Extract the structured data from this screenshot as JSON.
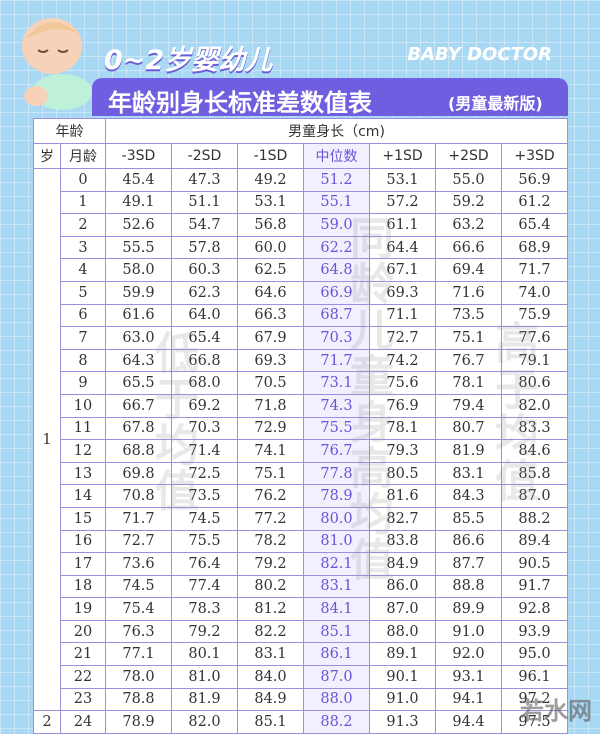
{
  "header": {
    "title_line1": "0~2岁婴幼儿",
    "brand": "BABY DOCTOR",
    "title_line2": "年龄别身长标准差数值表",
    "edition": "(男童最新版)"
  },
  "table": {
    "age_heading": "年龄",
    "span_heading": "男童身长（cm)",
    "columns": [
      "岁",
      "月龄",
      "-3SD",
      "-2SD",
      "-1SD",
      "中位数",
      "+1SD",
      "+2SD",
      "+3SD"
    ],
    "groups": [
      {
        "label": "1",
        "rows": [
          {
            "month": "0",
            "values": [
              "45.4",
              "47.3",
              "49.2",
              "51.2",
              "53.1",
              "55.0",
              "56.9"
            ]
          },
          {
            "month": "1",
            "values": [
              "49.1",
              "51.1",
              "53.1",
              "55.1",
              "57.2",
              "59.2",
              "61.2"
            ]
          },
          {
            "month": "2",
            "values": [
              "52.6",
              "54.7",
              "56.8",
              "59.0",
              "61.1",
              "63.2",
              "65.4"
            ]
          },
          {
            "month": "3",
            "values": [
              "55.5",
              "57.8",
              "60.0",
              "62.2",
              "64.4",
              "66.6",
              "68.9"
            ]
          },
          {
            "month": "4",
            "values": [
              "58.0",
              "60.3",
              "62.5",
              "64.8",
              "67.1",
              "69.4",
              "71.7"
            ]
          },
          {
            "month": "5",
            "values": [
              "59.9",
              "62.3",
              "64.6",
              "66.9",
              "69.3",
              "71.6",
              "74.0"
            ]
          },
          {
            "month": "6",
            "values": [
              "61.6",
              "64.0",
              "66.3",
              "68.7",
              "71.1",
              "73.5",
              "75.9"
            ]
          },
          {
            "month": "7",
            "values": [
              "63.0",
              "65.4",
              "67.9",
              "70.3",
              "72.7",
              "75.1",
              "77.6"
            ]
          },
          {
            "month": "8",
            "values": [
              "64.3",
              "66.8",
              "69.3",
              "71.7",
              "74.2",
              "76.7",
              "79.1"
            ]
          },
          {
            "month": "9",
            "values": [
              "65.5",
              "68.0",
              "70.5",
              "73.1",
              "75.6",
              "78.1",
              "80.6"
            ]
          },
          {
            "month": "10",
            "values": [
              "66.7",
              "69.2",
              "71.8",
              "74.3",
              "76.9",
              "79.4",
              "82.0"
            ]
          },
          {
            "month": "11",
            "values": [
              "67.8",
              "70.3",
              "72.9",
              "75.5",
              "78.1",
              "80.7",
              "83.3"
            ]
          },
          {
            "month": "12",
            "values": [
              "68.8",
              "71.4",
              "74.1",
              "76.7",
              "79.3",
              "81.9",
              "84.6"
            ]
          },
          {
            "month": "13",
            "values": [
              "69.8",
              "72.5",
              "75.1",
              "77.8",
              "80.5",
              "83.1",
              "85.8"
            ]
          },
          {
            "month": "14",
            "values": [
              "70.8",
              "73.5",
              "76.2",
              "78.9",
              "81.6",
              "84.3",
              "87.0"
            ]
          },
          {
            "month": "15",
            "values": [
              "71.7",
              "74.5",
              "77.2",
              "80.0",
              "82.7",
              "85.5",
              "88.2"
            ]
          },
          {
            "month": "16",
            "values": [
              "72.7",
              "75.5",
              "78.2",
              "81.0",
              "83.8",
              "86.6",
              "89.4"
            ]
          },
          {
            "month": "17",
            "values": [
              "73.6",
              "76.4",
              "79.2",
              "82.1",
              "84.9",
              "87.7",
              "90.5"
            ]
          },
          {
            "month": "18",
            "values": [
              "74.5",
              "77.4",
              "80.2",
              "83.1",
              "86.0",
              "88.8",
              "91.7"
            ]
          },
          {
            "month": "19",
            "values": [
              "75.4",
              "78.3",
              "81.2",
              "84.1",
              "87.0",
              "89.9",
              "92.8"
            ]
          },
          {
            "month": "20",
            "values": [
              "76.3",
              "79.2",
              "82.2",
              "85.1",
              "88.0",
              "91.0",
              "93.9"
            ]
          },
          {
            "month": "21",
            "values": [
              "77.1",
              "80.1",
              "83.1",
              "86.1",
              "89.1",
              "92.0",
              "95.0"
            ]
          },
          {
            "month": "22",
            "values": [
              "78.0",
              "81.0",
              "84.0",
              "87.0",
              "90.1",
              "93.1",
              "96.1"
            ]
          },
          {
            "month": "23",
            "values": [
              "78.8",
              "81.9",
              "84.9",
              "88.0",
              "91.0",
              "94.1",
              "97.2"
            ]
          }
        ]
      },
      {
        "label": "2",
        "rows": [
          {
            "month": "24",
            "values": [
              "78.9",
              "82.0",
              "85.1",
              "88.2",
              "91.3",
              "94.4",
              "97.5"
            ]
          }
        ]
      }
    ]
  },
  "watermarks": {
    "center": "同龄儿童身高均值",
    "left": "低于均值",
    "right": "高于均值",
    "site": "若水网"
  }
}
